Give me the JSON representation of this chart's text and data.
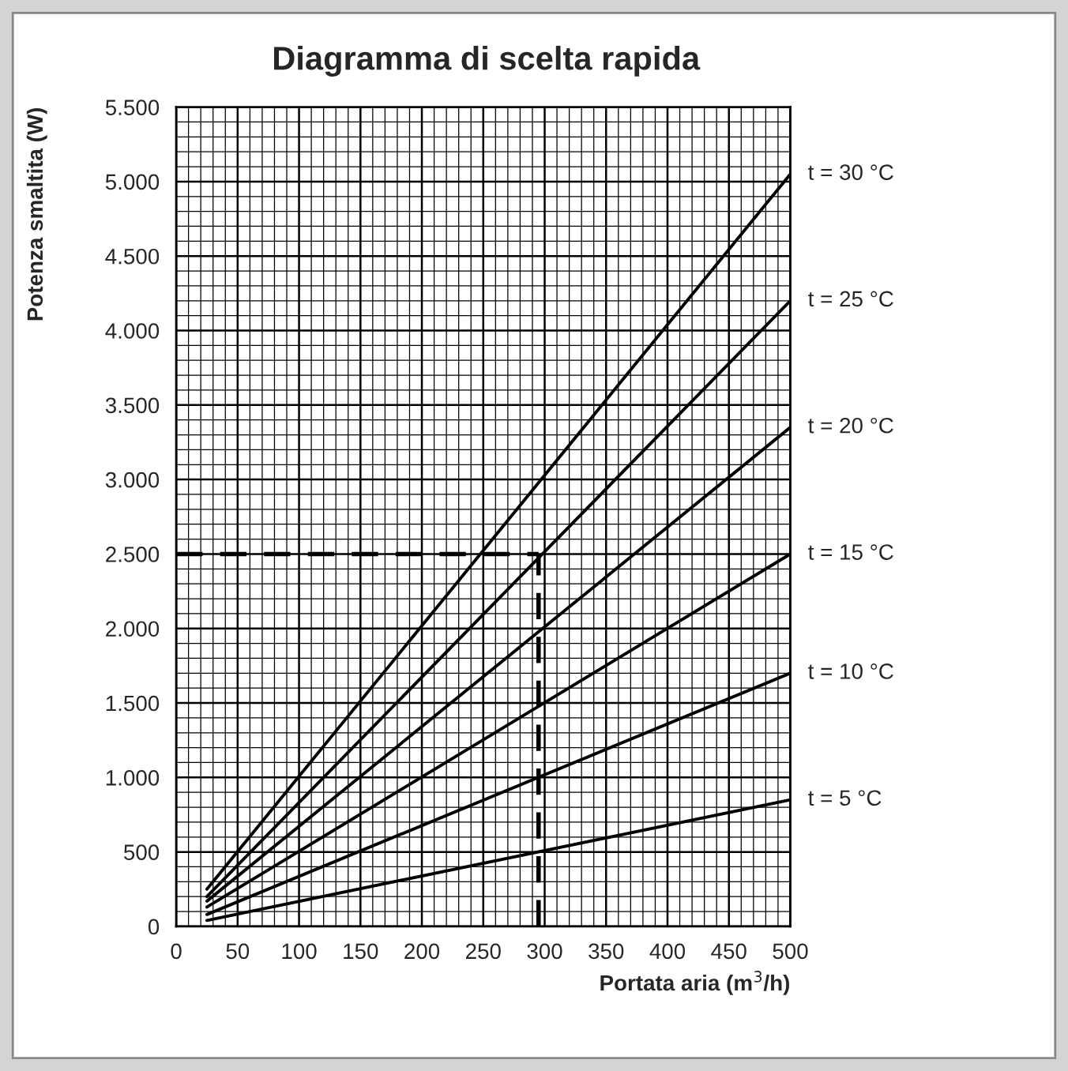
{
  "chart_data": {
    "type": "line",
    "title": "Diagramma di scelta rapida",
    "xlabel": "Portata aria (m$^{3}$/h)",
    "ylabel": "Potenza smaltita (W)",
    "x": [
      25,
      500
    ],
    "series": [
      {
        "name": "t = 30 °C",
        "color": "#000000",
        "values": [
          250,
          5050
        ]
      },
      {
        "name": "t = 25 °C",
        "color": "#000000",
        "values": [
          200,
          4200
        ]
      },
      {
        "name": "t = 20 °C",
        "color": "#000000",
        "values": [
          170,
          3350
        ]
      },
      {
        "name": "t = 15 °C",
        "color": "#000000",
        "values": [
          130,
          2500
        ]
      },
      {
        "name": "t = 10 °C",
        "color": "#000000",
        "values": [
          80,
          1700
        ]
      },
      {
        "name": "t = 5 °C",
        "color": "#000000",
        "values": [
          40,
          850
        ]
      }
    ],
    "xlim": [
      0,
      500
    ],
    "xticks": [
      0,
      50,
      100,
      150,
      200,
      250,
      300,
      350,
      400,
      450,
      500
    ],
    "ylim": [
      0,
      5500
    ],
    "yticks": [
      0,
      500,
      {
        "value": 1000,
        "label": "1.000"
      },
      {
        "value": 1500,
        "label": "1.500"
      },
      {
        "value": 2000,
        "label": "2.000"
      },
      {
        "value": 2500,
        "label": "2.500"
      },
      {
        "value": 3000,
        "label": "3.000"
      },
      {
        "value": 3500,
        "label": "3.500"
      },
      {
        "value": 4000,
        "label": "4.000"
      },
      {
        "value": 4500,
        "label": "4.500"
      },
      {
        "value": 5000,
        "label": "5.000"
      },
      {
        "value": 5500,
        "label": "5.500"
      }
    ],
    "ref_lines": [
      {
        "axis": "y",
        "value": 2500,
        "line_style": "dashed",
        "color": "#000000"
      },
      {
        "axis": "x",
        "value": 295,
        "line_style": "dashed",
        "color": "#000000"
      }
    ],
    "grid": true,
    "line_style": "solid"
  }
}
